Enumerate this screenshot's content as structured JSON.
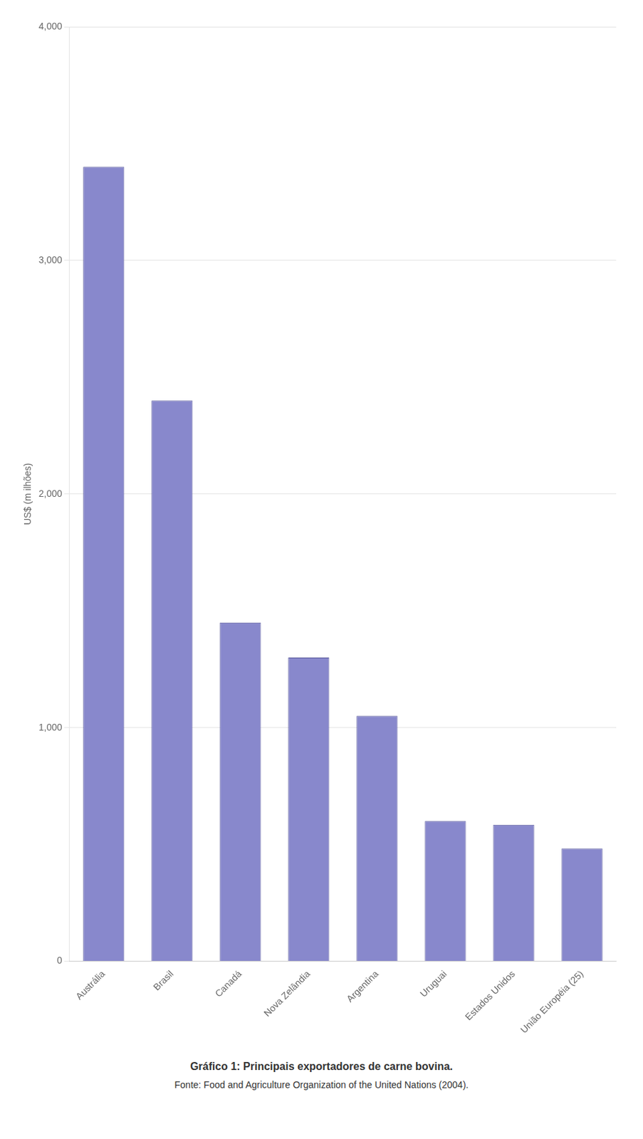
{
  "chart_data": {
    "type": "bar",
    "title": "Gráfico 1: Principais exportadores de carne bovina.",
    "subtitle": "Fonte: Food and Agriculture Organization of the United Nations (2004).",
    "ylabel": "US$ (m ilhões)",
    "categories": [
      "Austrália",
      "Brasil",
      "Canadá",
      "Nova Zelândia",
      "Argentina",
      "Uruguai",
      "Estados Unidos",
      "União Européia (25)"
    ],
    "values": [
      3400,
      2400,
      1450,
      1300,
      1050,
      600,
      584,
      482
    ],
    "color": "#8888cc",
    "ylim": [
      0,
      4000
    ],
    "yticks": [
      0,
      {
        "value": 1000,
        "label": "1,000"
      },
      {
        "value": 2000,
        "label": "2,000"
      },
      {
        "value": 3000,
        "label": "3,000"
      },
      {
        "value": 4000,
        "label": "4,000"
      }
    ],
    "grid": true
  }
}
